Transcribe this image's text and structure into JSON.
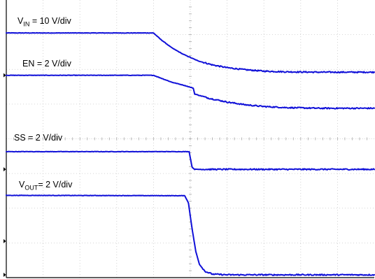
{
  "chart_data": {
    "type": "line",
    "title": "",
    "xlabel": "",
    "ylabel": "",
    "divisions": {
      "x": 10,
      "y": 8
    },
    "trigger_time_div": 5.08,
    "colors": {
      "trace": "#1010d8",
      "grid": "#c8c8c8",
      "frame": "#000000"
    },
    "grid": true,
    "series": [
      {
        "name": "V_IN",
        "label_main": "V",
        "label_sub": "IN",
        "label_rest": " = 10 V/div",
        "ground_div": 1.05,
        "levels_div": {
          "initial": 7.05,
          "final": 5.92
        },
        "points": [
          [
            0,
            7.05
          ],
          [
            4.0,
            7.05
          ],
          [
            4.2,
            6.86
          ],
          [
            4.5,
            6.62
          ],
          [
            4.8,
            6.44
          ],
          [
            5.2,
            6.25
          ],
          [
            5.6,
            6.13
          ],
          [
            6.0,
            6.05
          ],
          [
            6.5,
            5.99
          ],
          [
            7.0,
            5.95
          ],
          [
            7.6,
            5.93
          ],
          [
            8.5,
            5.92
          ],
          [
            10,
            5.92
          ]
        ]
      },
      {
        "name": "EN",
        "label_main": "EN = 2 V/div",
        "label_sub": "",
        "label_rest": "",
        "ground_div": 5.83,
        "levels_div": {
          "initial": 5.83,
          "final": 4.88
        },
        "points": [
          [
            0,
            5.83
          ],
          [
            4.0,
            5.83
          ],
          [
            4.15,
            5.77
          ],
          [
            4.5,
            5.63
          ],
          [
            4.8,
            5.55
          ],
          [
            5.08,
            5.46
          ],
          [
            5.12,
            5.29
          ],
          [
            5.5,
            5.17
          ],
          [
            6.0,
            5.06
          ],
          [
            6.5,
            4.98
          ],
          [
            7.0,
            4.93
          ],
          [
            7.6,
            4.9
          ],
          [
            8.5,
            4.88
          ],
          [
            10,
            4.88
          ]
        ]
      },
      {
        "name": "SS",
        "label_main": "SS = 2 V/div",
        "label_sub": "",
        "label_rest": "",
        "ground_div": 3.12,
        "levels_div": {
          "initial": 3.63,
          "final": 3.12
        },
        "points": [
          [
            0,
            3.63
          ],
          [
            4.97,
            3.63
          ],
          [
            5.0,
            3.45
          ],
          [
            5.05,
            3.18
          ],
          [
            5.12,
            3.12
          ],
          [
            10,
            3.12
          ]
        ]
      },
      {
        "name": "V_OUT",
        "label_main": "V",
        "label_sub": "OUT",
        "label_rest": "= 2 V/div",
        "ground_div": 0.08,
        "levels_div": {
          "initial": 2.37,
          "final": 0.08
        },
        "points": [
          [
            0,
            2.37
          ],
          [
            4.85,
            2.36
          ],
          [
            4.95,
            2.15
          ],
          [
            5.05,
            1.4
          ],
          [
            5.15,
            0.75
          ],
          [
            5.25,
            0.38
          ],
          [
            5.4,
            0.18
          ],
          [
            5.6,
            0.1
          ],
          [
            6.0,
            0.08
          ],
          [
            10,
            0.08
          ]
        ]
      }
    ]
  }
}
